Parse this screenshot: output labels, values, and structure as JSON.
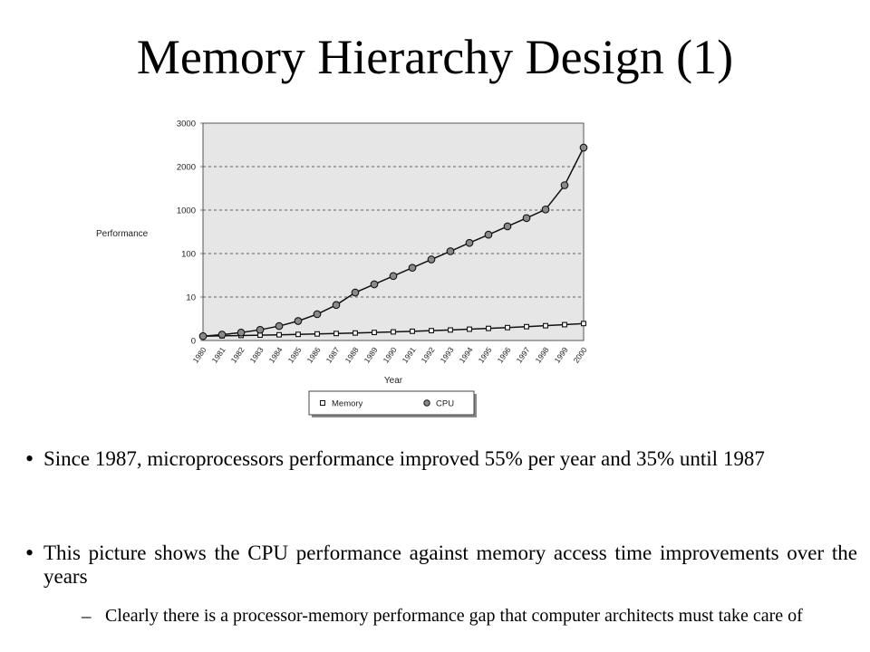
{
  "slide": {
    "title": "Memory Hierarchy Design (1)",
    "bullets": [
      {
        "text": "Since 1987, microprocessors performance improved 55% per year and 35% until 1987",
        "sub": []
      },
      {
        "text": "This picture shows the CPU performance against memory access time improvements over the years",
        "sub": [
          "Clearly there is a processor-memory performance gap that computer architects must take care of"
        ]
      }
    ]
  },
  "chart_data": {
    "type": "line",
    "xlabel": "Year",
    "ylabel": "Performance",
    "x": [
      "1980",
      "1981",
      "1982",
      "1983",
      "1984",
      "1985",
      "1986",
      "1987",
      "1988",
      "1989",
      "1990",
      "1991",
      "1992",
      "1993",
      "1994",
      "1995",
      "1996",
      "1997",
      "1998",
      "1999",
      "2000"
    ],
    "y_ticks": [
      "0",
      "10",
      "100",
      "1000",
      "2000",
      "3000"
    ],
    "grid": true,
    "legend_position": "bottom",
    "background": "#e6e6e6",
    "series": [
      {
        "name": "Memory",
        "marker": "square",
        "values": [
          1,
          1.07,
          1.15,
          1.23,
          1.31,
          1.41,
          1.51,
          1.61,
          1.72,
          1.85,
          1.98,
          2.12,
          2.27,
          2.42,
          2.6,
          2.78,
          2.97,
          3.18,
          3.4,
          3.64,
          3.9
        ]
      },
      {
        "name": "CPU",
        "marker": "circle",
        "values": [
          1,
          1.35,
          1.82,
          2.46,
          3.32,
          4.48,
          6.05,
          8.17,
          12.7,
          19.6,
          30.4,
          47.1,
          73.1,
          113,
          176,
          272,
          422,
          654,
          1014,
          1572,
          2437
        ]
      }
    ]
  }
}
